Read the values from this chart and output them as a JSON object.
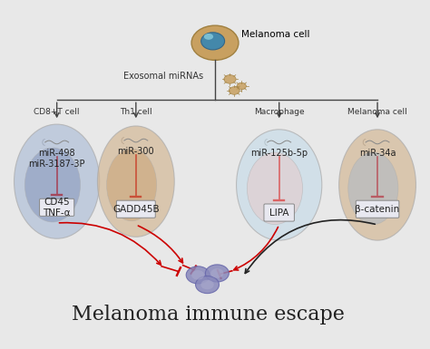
{
  "title": "Melanoma immune escape",
  "bg_color": "#e8e8e8",
  "top_cell_label": "Melanoma cell",
  "exosomal_label": "Exosomal miRNAs",
  "cell_labels": [
    "CD8+T cell",
    "Th1 cell",
    "Macrophage",
    "Melanoma cell"
  ],
  "mirna_labels": [
    "miR-498\nmiR-3187-3P",
    "miR-300",
    "miR-125b-5p",
    "miR-34a"
  ],
  "target_labels": [
    "CD45\nTNF-α",
    "GADD45B",
    "LIPA",
    "β-catenin"
  ],
  "cell_colors_outer": [
    "#b0bfd8",
    "#d4b896",
    "#c8dce8",
    "#d4b896"
  ],
  "cell_colors_inner": [
    "#8090b8",
    "#c8a070",
    "#e8c8c8",
    "#a8b8c8"
  ],
  "mirna_box_color": "#e0e0e0",
  "target_box_color": "#e8e8e8",
  "red_arrow_color": "#cc0000",
  "black_arrow_color": "#222222",
  "title_fontsize": 16,
  "label_fontsize": 8,
  "mirna_fontsize": 7,
  "target_fontsize": 7.5
}
